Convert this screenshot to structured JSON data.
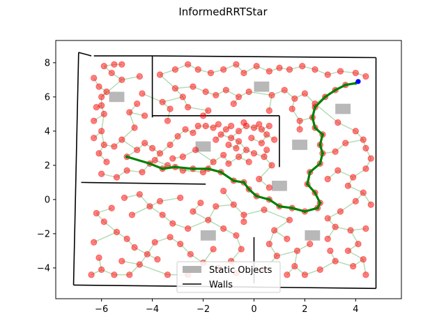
{
  "chart_data": {
    "type": "scatter",
    "title": "InformedRRTStar",
    "xlabel": "",
    "ylabel": "",
    "xlim": [
      -7.8,
      5.8
    ],
    "ylim": [
      -5.8,
      9.3
    ],
    "xticks": [
      -6,
      -4,
      -2,
      0,
      2,
      4
    ],
    "yticks": [
      -4,
      -2,
      0,
      2,
      4,
      6,
      8
    ],
    "xtick_labels": [
      "−6",
      "−4",
      "−2",
      "0",
      "2",
      "4"
    ],
    "ytick_labels": [
      "−4",
      "−2",
      "0",
      "2",
      "4",
      "6",
      "8"
    ],
    "grid": false,
    "legend_position": "bottom-center",
    "legend": [
      {
        "label": "Static Objects",
        "kind": "patch",
        "color": "#a0a0a0"
      },
      {
        "label": "Walls",
        "kind": "line",
        "color": "#000000"
      }
    ],
    "colors": {
      "nodes": "#ff0000",
      "edges": "#4caf50",
      "path": "#008000",
      "goal": "#0000ff",
      "static": "#a0a0a0",
      "walls": "#000000"
    },
    "walls": [
      [
        [
          -6.9,
          8.6
        ],
        [
          -7.1,
          -5.0
        ]
      ],
      [
        [
          -6.9,
          8.6
        ],
        [
          -6.4,
          8.4
        ]
      ],
      [
        [
          -6.3,
          8.4
        ],
        [
          -4.0,
          8.4
        ]
      ],
      [
        [
          -4.0,
          8.4
        ],
        [
          4.8,
          8.3
        ]
      ],
      [
        [
          4.8,
          8.3
        ],
        [
          4.8,
          -5.2
        ]
      ],
      [
        [
          -7.1,
          -5.0
        ],
        [
          4.8,
          -5.2
        ]
      ],
      [
        [
          -4.0,
          8.4
        ],
        [
          -4.0,
          4.8
        ]
      ],
      [
        [
          -4.0,
          4.9
        ],
        [
          1.0,
          4.9
        ]
      ],
      [
        [
          1.0,
          4.9
        ],
        [
          1.0,
          1.9
        ]
      ],
      [
        [
          -6.8,
          1.0
        ],
        [
          -1.9,
          0.9
        ]
      ],
      [
        [
          0.0,
          -2.2
        ],
        [
          0.0,
          -4.9
        ]
      ]
    ],
    "static_objects": [
      {
        "center": [
          -5.4,
          6.0
        ],
        "w": 0.6,
        "h": 0.6
      },
      {
        "center": [
          0.3,
          6.6
        ],
        "w": 0.6,
        "h": 0.6
      },
      {
        "center": [
          3.5,
          5.3
        ],
        "w": 0.6,
        "h": 0.6
      },
      {
        "center": [
          -2.0,
          3.1
        ],
        "w": 0.6,
        "h": 0.6
      },
      {
        "center": [
          1.8,
          3.2
        ],
        "w": 0.6,
        "h": 0.6
      },
      {
        "center": [
          1.0,
          0.8
        ],
        "w": 0.6,
        "h": 0.6
      },
      {
        "center": [
          -1.8,
          -2.1
        ],
        "w": 0.6,
        "h": 0.6
      },
      {
        "center": [
          2.3,
          -2.1
        ],
        "w": 0.6,
        "h": 0.6
      }
    ],
    "path": [
      [
        -5.0,
        2.5
      ],
      [
        -4.1,
        2.1
      ],
      [
        -3.6,
        1.8
      ],
      [
        -3.1,
        1.9
      ],
      [
        -2.4,
        1.8
      ],
      [
        -1.8,
        1.8
      ],
      [
        -1.3,
        1.6
      ],
      [
        -0.8,
        1.1
      ],
      [
        -0.4,
        1.0
      ],
      [
        -0.2,
        0.6
      ],
      [
        0.1,
        0.2
      ],
      [
        0.6,
        0.0
      ],
      [
        1.0,
        -0.4
      ],
      [
        1.5,
        -0.5
      ],
      [
        2.0,
        -0.7
      ],
      [
        2.5,
        -0.5
      ],
      [
        2.6,
        -0.2
      ],
      [
        2.4,
        0.4
      ],
      [
        2.1,
        0.9
      ],
      [
        2.2,
        1.6
      ],
      [
        2.6,
        2.1
      ],
      [
        2.7,
        2.7
      ],
      [
        2.6,
        3.2
      ],
      [
        2.7,
        3.8
      ],
      [
        2.4,
        4.2
      ],
      [
        2.3,
        4.8
      ],
      [
        2.4,
        5.4
      ],
      [
        2.8,
        6.0
      ],
      [
        3.2,
        6.4
      ],
      [
        3.6,
        6.7
      ],
      [
        4.0,
        6.8
      ],
      [
        4.1,
        6.9
      ]
    ],
    "goal": [
      4.1,
      6.9
    ],
    "nodes": [
      [
        -5.9,
        7.8
      ],
      [
        -5.5,
        7.9
      ],
      [
        -5.2,
        7.9
      ],
      [
        -5.6,
        7.4
      ],
      [
        -5.2,
        7.0
      ],
      [
        -6.0,
        6.0
      ],
      [
        -5.8,
        6.3
      ],
      [
        -6.0,
        5.5
      ],
      [
        -5.9,
        5.0
      ],
      [
        -6.0,
        4.0
      ],
      [
        -5.9,
        3.2
      ],
      [
        -6.1,
        2.7
      ],
      [
        -5.8,
        2.2
      ],
      [
        -5.5,
        3.1
      ],
      [
        -5.2,
        3.5
      ],
      [
        -4.7,
        4.2
      ],
      [
        -4.9,
        5.1
      ],
      [
        -4.3,
        4.9
      ],
      [
        -4.6,
        2.9
      ],
      [
        -4.3,
        3.3
      ],
      [
        -4.0,
        3.0
      ],
      [
        -3.7,
        2.7
      ],
      [
        -3.3,
        3.2
      ],
      [
        -3.0,
        3.7
      ],
      [
        -2.7,
        4.1
      ],
      [
        -2.4,
        3.9
      ],
      [
        -2.2,
        4.3
      ],
      [
        -1.9,
        4.3
      ],
      [
        -3.9,
        2.3
      ],
      [
        -3.4,
        2.0
      ],
      [
        -2.8,
        1.7
      ],
      [
        -2.0,
        1.6
      ],
      [
        -1.6,
        2.2
      ],
      [
        -1.2,
        2.6
      ],
      [
        -1.0,
        2.1
      ],
      [
        -0.6,
        2.5
      ],
      [
        -0.3,
        2.9
      ],
      [
        -0.6,
        3.4
      ],
      [
        -0.9,
        3.6
      ],
      [
        -1.3,
        3.8
      ],
      [
        -0.6,
        4.0
      ],
      [
        -0.3,
        4.3
      ],
      [
        0.0,
        4.2
      ],
      [
        0.3,
        4.1
      ],
      [
        0.5,
        3.8
      ],
      [
        0.3,
        3.3
      ],
      [
        0.0,
        2.7
      ],
      [
        -0.2,
        2.2
      ],
      [
        0.4,
        2.5
      ],
      [
        0.7,
        2.0
      ],
      [
        -3.7,
        7.3
      ],
      [
        -3.1,
        7.6
      ],
      [
        -2.6,
        7.9
      ],
      [
        -2.2,
        7.6
      ],
      [
        -1.7,
        7.4
      ],
      [
        -1.2,
        7.6
      ],
      [
        -0.7,
        7.9
      ],
      [
        -0.4,
        7.4
      ],
      [
        0.1,
        7.8
      ],
      [
        0.6,
        7.5
      ],
      [
        1.0,
        7.7
      ],
      [
        1.4,
        7.6
      ],
      [
        1.9,
        7.8
      ],
      [
        2.4,
        7.6
      ],
      [
        2.9,
        7.3
      ],
      [
        3.4,
        7.5
      ],
      [
        4.0,
        7.4
      ],
      [
        4.4,
        7.2
      ],
      [
        -3.1,
        6.5
      ],
      [
        -2.8,
        6.0
      ],
      [
        -2.4,
        6.6
      ],
      [
        -1.9,
        6.3
      ],
      [
        -1.5,
        6.1
      ],
      [
        -1.1,
        6.4
      ],
      [
        -0.6,
        6.0
      ],
      [
        -0.2,
        6.3
      ],
      [
        0.7,
        6.1
      ],
      [
        1.2,
        6.4
      ],
      [
        1.6,
        5.9
      ],
      [
        2.0,
        6.2
      ],
      [
        2.4,
        5.6
      ],
      [
        1.5,
        5.3
      ],
      [
        0.6,
        5.2
      ],
      [
        -3.6,
        5.7
      ],
      [
        -3.3,
        5.3
      ],
      [
        -2.6,
        5.4
      ],
      [
        -1.8,
        5.2
      ],
      [
        -0.8,
        5.6
      ],
      [
        1.8,
        4.6
      ],
      [
        1.8,
        4.1
      ],
      [
        3.3,
        4.5
      ],
      [
        4.0,
        4.0
      ],
      [
        4.3,
        3.5
      ],
      [
        3.6,
        3.3
      ],
      [
        3.2,
        2.8
      ],
      [
        4.4,
        3.0
      ],
      [
        4.6,
        2.4
      ],
      [
        4.4,
        1.8
      ],
      [
        3.9,
        1.3
      ],
      [
        3.3,
        1.7
      ],
      [
        2.9,
        1.2
      ],
      [
        3.7,
        0.8
      ],
      [
        4.3,
        0.4
      ],
      [
        4.6,
        -0.3
      ],
      [
        4.0,
        -0.1
      ],
      [
        3.4,
        -0.7
      ],
      [
        2.9,
        -1.1
      ],
      [
        3.2,
        -1.6
      ],
      [
        3.8,
        -1.8
      ],
      [
        4.4,
        -1.7
      ],
      [
        4.1,
        -2.6
      ],
      [
        3.7,
        -3.0
      ],
      [
        4.3,
        -3.5
      ],
      [
        4.4,
        -4.4
      ],
      [
        3.9,
        -3.9
      ],
      [
        3.2,
        -3.6
      ],
      [
        2.6,
        -4.1
      ],
      [
        2.0,
        -4.4
      ],
      [
        1.6,
        -3.9
      ],
      [
        1.3,
        -4.4
      ],
      [
        1.7,
        -3.0
      ],
      [
        0.9,
        -3.3
      ],
      [
        0.6,
        -2.6
      ],
      [
        0.8,
        -1.8
      ],
      [
        1.4,
        -1.2
      ],
      [
        0.4,
        -0.6
      ],
      [
        -0.4,
        -0.9
      ],
      [
        -0.8,
        -0.3
      ],
      [
        -1.2,
        0.5
      ],
      [
        -1.5,
        -0.4
      ],
      [
        -1.8,
        -1.2
      ],
      [
        -1.2,
        -1.7
      ],
      [
        -0.7,
        -2.1
      ],
      [
        -0.4,
        -1.3
      ],
      [
        -0.5,
        -2.9
      ],
      [
        -0.9,
        -3.6
      ],
      [
        -0.7,
        -4.3
      ],
      [
        -1.4,
        -4.0
      ],
      [
        -2.0,
        -3.7
      ],
      [
        -2.5,
        -3.2
      ],
      [
        -2.9,
        -2.6
      ],
      [
        -2.6,
        -1.7
      ],
      [
        -3.2,
        -1.4
      ],
      [
        -3.6,
        -0.9
      ],
      [
        -4.1,
        -0.4
      ],
      [
        -4.5,
        0.3
      ],
      [
        -3.7,
        -0.1
      ],
      [
        -2.9,
        0.1
      ],
      [
        -2.4,
        -0.7
      ],
      [
        -3.3,
        -2.2
      ],
      [
        -3.9,
        -2.5
      ],
      [
        -4.2,
        -3.2
      ],
      [
        -4.5,
        -3.8
      ],
      [
        -4.9,
        -4.4
      ],
      [
        -5.5,
        -4.4
      ],
      [
        -6.0,
        -4.1
      ],
      [
        -5.2,
        -3.6
      ],
      [
        -4.7,
        -2.8
      ],
      [
        -5.0,
        -2.3
      ],
      [
        -5.4,
        -1.9
      ],
      [
        -5.9,
        -1.3
      ],
      [
        -6.2,
        -0.8
      ],
      [
        -5.6,
        -0.5
      ],
      [
        -5.1,
        0.1
      ],
      [
        -4.8,
        -0.9
      ],
      [
        -6.3,
        -2.5
      ],
      [
        -6.1,
        -3.4
      ],
      [
        -6.4,
        -4.4
      ],
      [
        -3.4,
        -4.4
      ],
      [
        -2.6,
        -4.4
      ],
      [
        0.4,
        -4.1
      ],
      [
        2.9,
        -2.3
      ],
      [
        3.0,
        -3.0
      ],
      [
        2.2,
        -2.6
      ],
      [
        1.3,
        -2.3
      ],
      [
        -1.6,
        -2.9
      ],
      [
        -3.8,
        -3.5
      ],
      [
        -2.1,
        -0.2
      ],
      [
        0.2,
        1.2
      ],
      [
        0.6,
        0.7
      ],
      [
        -5.0,
        2.5
      ],
      [
        -4.1,
        2.1
      ],
      [
        -3.6,
        1.8
      ],
      [
        -3.1,
        1.9
      ],
      [
        -2.4,
        1.8
      ],
      [
        -1.8,
        1.8
      ],
      [
        -1.3,
        1.6
      ],
      [
        -0.8,
        1.1
      ],
      [
        -0.4,
        1.0
      ],
      [
        -0.2,
        0.6
      ],
      [
        0.1,
        0.2
      ],
      [
        0.6,
        0.0
      ],
      [
        1.0,
        -0.4
      ],
      [
        1.5,
        -0.5
      ],
      [
        2.0,
        -0.7
      ],
      [
        2.5,
        -0.5
      ],
      [
        2.6,
        -0.2
      ],
      [
        2.4,
        0.4
      ],
      [
        2.1,
        0.9
      ],
      [
        2.2,
        1.6
      ],
      [
        2.6,
        2.1
      ],
      [
        2.7,
        2.7
      ],
      [
        2.6,
        3.2
      ],
      [
        2.7,
        3.8
      ],
      [
        2.4,
        4.2
      ],
      [
        2.3,
        4.8
      ],
      [
        2.4,
        5.4
      ],
      [
        2.8,
        6.0
      ],
      [
        3.2,
        6.4
      ],
      [
        3.6,
        6.7
      ],
      [
        -1.6,
        4.2
      ],
      [
        -1.4,
        4.4
      ],
      [
        -1.1,
        4.1
      ],
      [
        -0.9,
        4.3
      ],
      [
        -0.4,
        4.5
      ],
      [
        0.2,
        4.4
      ],
      [
        0.6,
        4.3
      ],
      [
        0.8,
        3.5
      ],
      [
        0.5,
        2.9
      ],
      [
        -0.1,
        3.6
      ],
      [
        -0.7,
        3.0
      ],
      [
        -1.0,
        3.2
      ],
      [
        -1.5,
        3.5
      ],
      [
        -2.3,
        2.9
      ],
      [
        -2.8,
        2.5
      ],
      [
        -3.2,
        2.4
      ],
      [
        -4.4,
        1.6
      ],
      [
        -5.0,
        1.7
      ],
      [
        -5.4,
        1.3
      ],
      [
        -6.0,
        1.5
      ],
      [
        -6.3,
        3.6
      ],
      [
        -6.3,
        4.6
      ],
      [
        -6.2,
        5.4
      ],
      [
        -6.1,
        6.6
      ],
      [
        -6.3,
        7.1
      ],
      [
        -4.5,
        7.2
      ],
      [
        -4.4,
        6.2
      ],
      [
        -4.6,
        5.6
      ],
      [
        -3.4,
        4.6
      ],
      [
        -2.0,
        4.9
      ]
    ],
    "edges_from_root": [
      -5.0,
      2.5
    ]
  }
}
